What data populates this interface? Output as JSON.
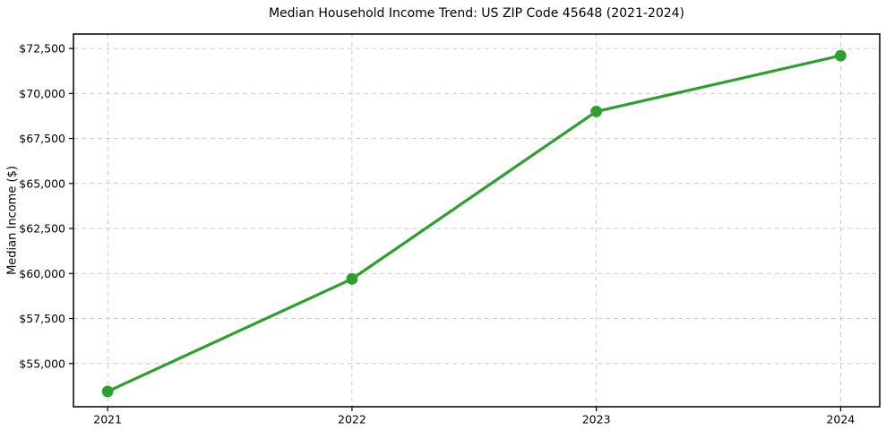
{
  "chart_data": {
    "type": "line",
    "title": "Median Household Income Trend: US ZIP Code 45648 (2021-2024)",
    "xlabel": "",
    "ylabel": "Median Income ($)",
    "x": [
      2021,
      2022,
      2023,
      2024
    ],
    "x_tick_labels": [
      "2021",
      "2022",
      "2023",
      "2024"
    ],
    "values": [
      53450,
      59700,
      69000,
      72100
    ],
    "yticks": [
      {
        "value": 55000,
        "label": "$55,000"
      },
      {
        "value": 57500,
        "label": "$57,500"
      },
      {
        "value": 60000,
        "label": "$60,000"
      },
      {
        "value": 62500,
        "label": "$62,500"
      },
      {
        "value": 65000,
        "label": "$65,000"
      },
      {
        "value": 67500,
        "label": "$67,500"
      },
      {
        "value": 70000,
        "label": "$70,000"
      },
      {
        "value": 72500,
        "label": "$72,500"
      }
    ],
    "xlim": [
      2020.86,
      2024.16
    ],
    "ylim": [
      52600,
      73300
    ],
    "grid": true,
    "grid_style": "dashed",
    "legend_position": "none",
    "line_color": "#2ca02c",
    "marker_color": "#2ca02c",
    "marker_shape": "circle",
    "grid_color": "#cccccc",
    "axis_color": "#000000",
    "text_color": "#000000",
    "background_color": "#ffffff"
  }
}
